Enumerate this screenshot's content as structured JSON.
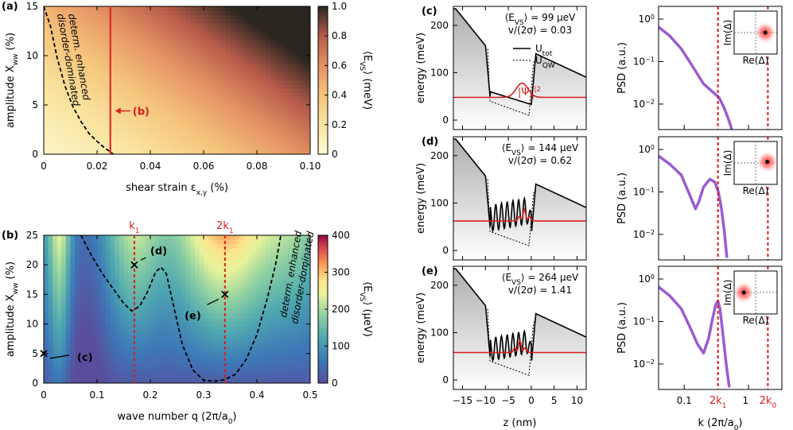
{
  "panel_labels": {
    "a": "(a)",
    "b": "(b)",
    "c": "(c)",
    "d": "(d)",
    "e": "(e)"
  },
  "chart_data": [
    {
      "id": "a",
      "type": "heatmap",
      "xlabel": "shear strain ε",
      "xlabel_sub": "x,y",
      "xlabel_unit": " (%)",
      "ylabel": "amplitude X",
      "ylabel_sub": "ww",
      "ylabel_unit": " (%)",
      "xlim": [
        0,
        0.1
      ],
      "ylim": [
        0,
        15
      ],
      "xticks": [
        0,
        0.02,
        0.04,
        0.06,
        0.08,
        0.1
      ],
      "xtick_labels": [
        "0",
        "0.02",
        "0.04",
        "0.06",
        "0.08",
        "0.10"
      ],
      "yticks": [
        0,
        5,
        10,
        15
      ],
      "ytick_labels": [
        "0",
        "5",
        "10",
        "15"
      ],
      "colorbar": {
        "label": "⟨E",
        "label_sub": "VS",
        "label_unit": "⟩ (meV)",
        "range": [
          0,
          1.0
        ],
        "ticks": [
          0,
          0.2,
          0.4,
          0.6,
          0.8,
          1.0
        ],
        "tick_labels": [
          "0",
          "0.2",
          "0.4",
          "0.6",
          "0.8",
          "1.0"
        ]
      },
      "vline": {
        "x": 0.025,
        "label": "(b)"
      },
      "boundary": {
        "x": [
          0.0,
          0.0025,
          0.005,
          0.008,
          0.011,
          0.014,
          0.017,
          0.02,
          0.023,
          0.025,
          0.026
        ],
        "y": [
          15,
          13,
          9.8,
          6.9,
          4.8,
          3.3,
          2.1,
          1.3,
          0.6,
          0.25,
          0
        ]
      },
      "annotations": [
        "determ. enhanced",
        "disorder-dominated"
      ]
    },
    {
      "id": "b",
      "type": "heatmap",
      "xlabel": "wave number q (2π/a",
      "xlabel_sub": "0",
      "xlabel_unit": ")",
      "ylabel": "amplitude X",
      "ylabel_sub": "ww",
      "ylabel_unit": " (%)",
      "xlim": [
        0,
        0.5
      ],
      "ylim": [
        0,
        25
      ],
      "xticks": [
        0,
        0.1,
        0.2,
        0.3,
        0.4,
        0.5
      ],
      "xtick_labels": [
        "0",
        "0.1",
        "0.2",
        "0.3",
        "0.4",
        "0.5"
      ],
      "yticks": [
        0,
        5,
        10,
        15,
        20,
        25
      ],
      "ytick_labels": [
        "0",
        "5",
        "10",
        "15",
        "20",
        "25"
      ],
      "colorbar": {
        "label": "⟨E",
        "label_sub": "VS",
        "label_unit": "⟩ (μeV)",
        "range": [
          0,
          400
        ],
        "ticks": [
          0,
          100,
          200,
          300,
          400
        ],
        "tick_labels": [
          "0",
          "100",
          "200",
          "300",
          "400"
        ]
      },
      "vlines": [
        {
          "x": 0.17,
          "label": "k",
          "label_sub": "1"
        },
        {
          "x": 0.34,
          "label": "2k",
          "label_sub": "1"
        }
      ],
      "boundary": {
        "x": [
          0.07,
          0.09,
          0.11,
          0.13,
          0.15,
          0.165,
          0.18,
          0.195,
          0.21,
          0.22,
          0.23,
          0.245,
          0.26,
          0.28,
          0.3,
          0.32,
          0.34,
          0.36,
          0.38,
          0.4,
          0.42,
          0.435,
          0.445
        ],
        "y": [
          25,
          21.5,
          18.5,
          16,
          13.5,
          12.2,
          13,
          15.5,
          18.8,
          19.6,
          18.5,
          12.5,
          6.5,
          2.2,
          0.5,
          0.3,
          0.6,
          1.5,
          4,
          8.2,
          14.5,
          20,
          25
        ]
      },
      "markers": [
        {
          "x": 0,
          "y": 5,
          "label": "(c)"
        },
        {
          "x": 0.17,
          "y": 20,
          "label": "(d)"
        },
        {
          "x": 0.34,
          "y": 15,
          "label": "(e)"
        }
      ],
      "annotations": [
        "determ. enhanced",
        "disorder-dominated"
      ]
    },
    {
      "id": "c",
      "type": "line",
      "xlim": [
        -17,
        12
      ],
      "ylim": [
        -20,
        240
      ],
      "ylabel": "energy (meV)",
      "xticks": [
        -15,
        -10,
        -5,
        0,
        5,
        10
      ],
      "xtick_labels": [
        "−15",
        "−10",
        "−5",
        "0",
        "5",
        "10"
      ],
      "yticks": [
        0,
        100,
        200
      ],
      "ytick_labels": [
        "0",
        "100",
        "200"
      ],
      "ev_label": "⟨E",
      "ev_sub": "VS",
      "ev_value": "⟩ = 99 μeV",
      "ratio_text": "v/(2σ) = 0.03",
      "legend": [
        {
          "name": "U",
          "sub": "tot",
          "style": "solid"
        },
        {
          "name": "U",
          "sub": "QW",
          "style": "dotted"
        }
      ],
      "psi_label": "|Ψ",
      "psi_sub": "0",
      "psi_sup": "2",
      "psi_end": "|",
      "osc_amp": 0,
      "well_base": 20,
      "psi_peak": -2,
      "psi_level": 48
    },
    {
      "id": "d",
      "type": "line",
      "xlim": [
        -17,
        12
      ],
      "ylim": [
        -20,
        240
      ],
      "ylabel": "energy (meV)",
      "xticks": [
        -15,
        -10,
        -5,
        0,
        5,
        10
      ],
      "xtick_labels": [
        "−15",
        "−10",
        "−5",
        "0",
        "5",
        "10"
      ],
      "yticks": [
        0,
        100,
        200
      ],
      "ytick_labels": [
        "0",
        "100",
        "200"
      ],
      "ev_label": "⟨E",
      "ev_sub": "VS",
      "ev_value": "⟩ = 144 μeV",
      "ratio_text": "v/(2σ) = 0.62",
      "osc_amp": 55,
      "well_base": 40,
      "psi_peak": -1.5,
      "psi_level": 62
    },
    {
      "id": "e",
      "type": "line",
      "xlim": [
        -17,
        12
      ],
      "ylim": [
        -20,
        240
      ],
      "ylabel": "energy (meV)",
      "xlabel": "z (nm)",
      "xticks": [
        -15,
        -10,
        -5,
        0,
        5,
        10
      ],
      "xtick_labels": [
        "−15",
        "−10",
        "−5",
        "0",
        "5",
        "10"
      ],
      "yticks": [
        0,
        100,
        200
      ],
      "ytick_labels": [
        "0",
        "100",
        "200"
      ],
      "ev_label": "⟨E",
      "ev_sub": "VS",
      "ev_value": "⟩ = 264 μeV",
      "ratio_text": "v/(2σ) = 1.41",
      "osc_amp": 48,
      "well_base": 40,
      "psi_peak": -2.5,
      "psi_level": 58
    },
    {
      "id": "psd_c",
      "type": "line",
      "xscale": "log",
      "yscale": "log",
      "ylabel": "PSD (a.u.)",
      "xlim": [
        0.04,
        3.3
      ],
      "ylim_exp": [
        -2.6,
        0.3
      ],
      "yticks_exp": [
        -2,
        -1,
        0
      ],
      "ytick_labels": [
        "10",
        "10",
        "10"
      ],
      "ytick_sups": [
        "−2",
        "−1",
        "0"
      ],
      "x": [
        0.04,
        0.06,
        0.09,
        0.13,
        0.2,
        0.28,
        0.35,
        0.42,
        0.5,
        0.55
      ],
      "y": [
        0.65,
        0.4,
        0.2,
        0.085,
        0.03,
        0.019,
        0.014,
        0.008,
        0.004,
        0.0025
      ],
      "k1_line": 0.335,
      "k0_line": 2.0,
      "inset_dot": [
        0.45,
        0.0
      ]
    },
    {
      "id": "psd_d",
      "type": "line",
      "xscale": "log",
      "yscale": "log",
      "ylabel": "PSD (a.u.)",
      "xlim": [
        0.04,
        3.3
      ],
      "ylim_exp": [
        -2.6,
        0.3
      ],
      "yticks_exp": [
        -2,
        -1,
        0
      ],
      "ytick_labels": [
        "10",
        "10",
        "10"
      ],
      "ytick_sups": [
        "−2",
        "−1",
        "0"
      ],
      "x": [
        0.04,
        0.06,
        0.09,
        0.12,
        0.15,
        0.17,
        0.2,
        0.25,
        0.3,
        0.34,
        0.38,
        0.42,
        0.46
      ],
      "y": [
        0.7,
        0.45,
        0.25,
        0.09,
        0.04,
        0.06,
        0.13,
        0.2,
        0.17,
        0.1,
        0.04,
        0.012,
        0.003
      ],
      "k1_line": 0.335,
      "k0_line": 2.0,
      "inset_dot": [
        0.55,
        0.05
      ]
    },
    {
      "id": "psd_e",
      "type": "line",
      "xscale": "log",
      "yscale": "log",
      "ylabel": "PSD (a.u.)",
      "xlabel": "k (2π/a",
      "xlabel_sub": "0",
      "xlabel_unit": ")",
      "xlim": [
        0.04,
        3.3
      ],
      "ylim_exp": [
        -2.6,
        0.3
      ],
      "yticks_exp": [
        -2,
        -1,
        0
      ],
      "ytick_labels": [
        "10",
        "10",
        "10"
      ],
      "ytick_sups": [
        "−2",
        "−1",
        "0"
      ],
      "xtick_labels": [
        "0.1",
        "2k",
        "1",
        "2k"
      ],
      "xtick_subs": [
        "1",
        "0"
      ],
      "x": [
        0.04,
        0.06,
        0.09,
        0.12,
        0.16,
        0.2,
        0.24,
        0.28,
        0.31,
        0.335,
        0.36,
        0.4,
        0.45,
        0.5
      ],
      "y": [
        0.65,
        0.4,
        0.2,
        0.08,
        0.03,
        0.018,
        0.04,
        0.13,
        0.25,
        0.3,
        0.2,
        0.05,
        0.01,
        0.003
      ],
      "k1_line": 0.335,
      "k0_line": 2.0,
      "inset_dot": [
        -0.55,
        0.0
      ]
    }
  ],
  "inset_labels": {
    "im": "Im(Δ)",
    "re": "Re(Δ)"
  }
}
